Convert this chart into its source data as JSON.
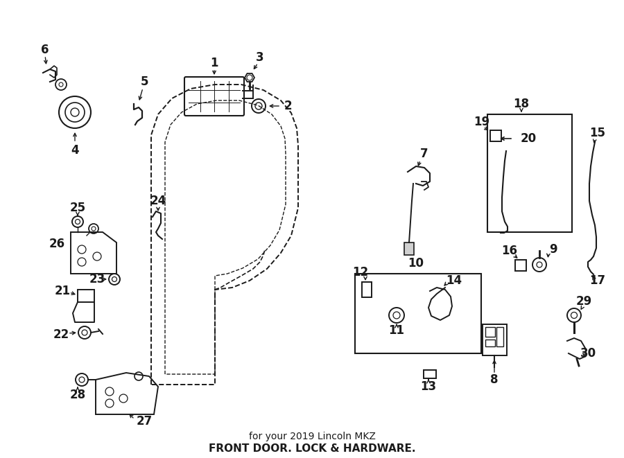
{
  "title": "FRONT DOOR. LOCK & HARDWARE.",
  "subtitle": "for your 2019 Lincoln MKZ",
  "bg_color": "#ffffff",
  "line_color": "#1a1a1a",
  "fig_w": 9.0,
  "fig_h": 6.61,
  "dpi": 100
}
